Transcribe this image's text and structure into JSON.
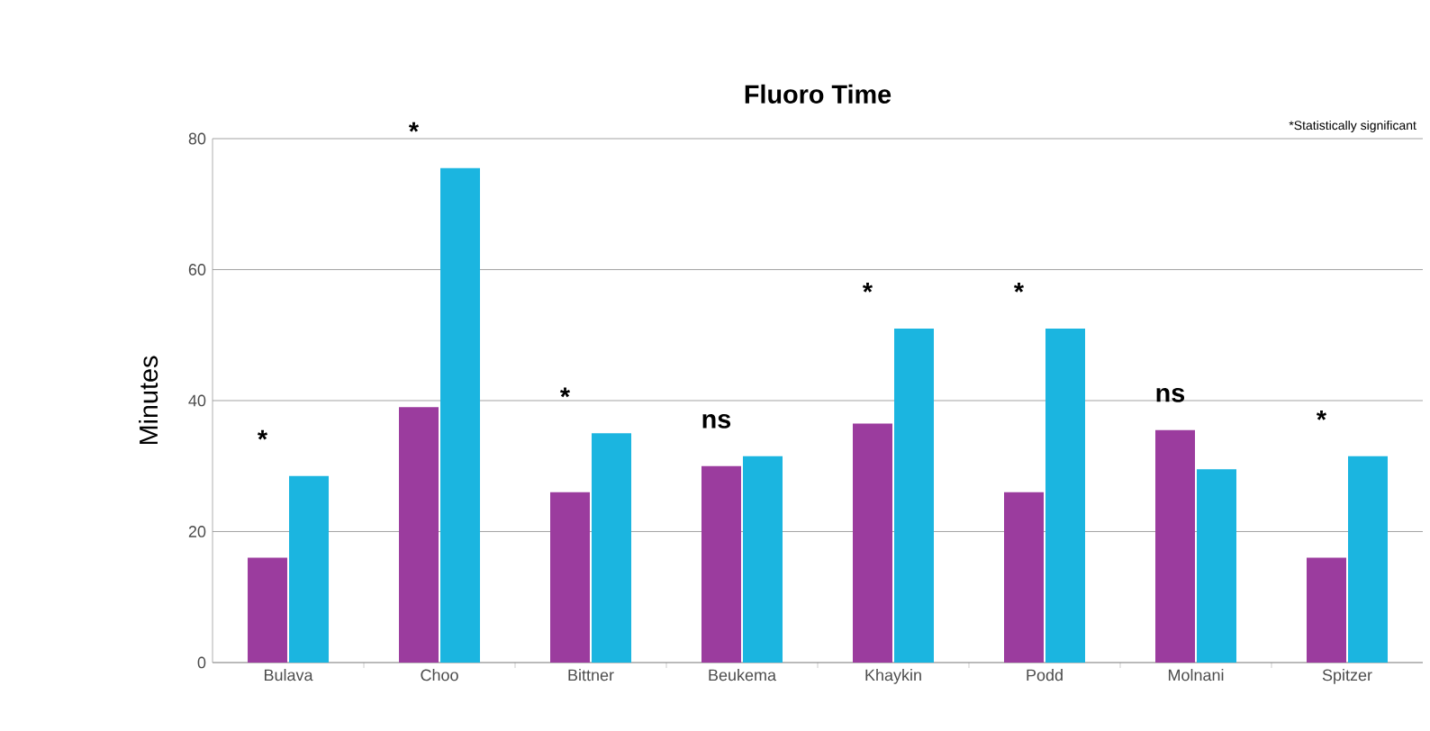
{
  "chart_data": {
    "type": "bar",
    "title": "Fluoro Time",
    "ylabel": "Minutes",
    "categories": [
      "Bulava",
      "Choo",
      "Bittner",
      "Beukema",
      "Khaykin",
      "Podd",
      "Molnani",
      "Spitzer"
    ],
    "series": [
      {
        "color": "#9b3c9e",
        "values": [
          16,
          39,
          26,
          30,
          36.5,
          26,
          35.5,
          16
        ]
      },
      {
        "color": "#1bb5e0",
        "values": [
          28.5,
          75.5,
          35,
          31.5,
          51,
          51,
          29.5,
          31.5
        ]
      }
    ],
    "ylim": [
      0,
      80
    ],
    "yticks": [
      0,
      20,
      40,
      60,
      80
    ],
    "grid": "y",
    "annotations": [
      "*",
      "*",
      "*",
      "ns",
      "*",
      "*",
      "ns",
      "*",
      "*Statistically significant"
    ]
  }
}
